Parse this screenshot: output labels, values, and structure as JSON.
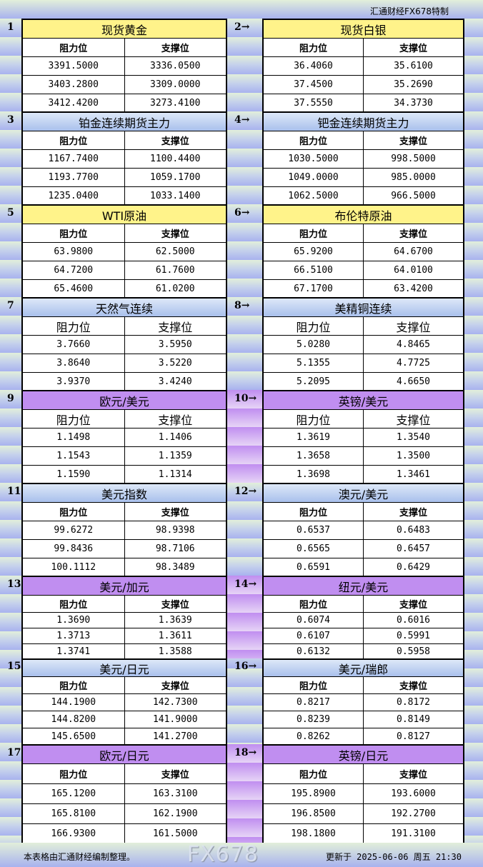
{
  "header": {
    "brand": "汇通财经FX678特制"
  },
  "labels": {
    "resistance": "阻力位",
    "support": "支撑位",
    "arrow": "→"
  },
  "colors": {
    "yellow": "#fff38a",
    "blue": "#c8d8f4",
    "purple": "#c08ef0"
  },
  "sections": [
    {
      "num": "1",
      "title": "现货黄金",
      "color": "yellow",
      "rows": [
        [
          "3391.5000",
          "3336.0500"
        ],
        [
          "3403.2800",
          "3309.0000"
        ],
        [
          "3412.4200",
          "3273.4100"
        ]
      ]
    },
    {
      "num": "2",
      "title": "现货白银",
      "color": "yellow",
      "rows": [
        [
          "36.4060",
          "35.6100"
        ],
        [
          "37.4500",
          "35.2690"
        ],
        [
          "37.5550",
          "34.3730"
        ]
      ]
    },
    {
      "num": "3",
      "title": "铂金连续期货主力",
      "color": "blue",
      "rows": [
        [
          "1167.7400",
          "1100.4400"
        ],
        [
          "1193.7700",
          "1059.1700"
        ],
        [
          "1235.0400",
          "1033.1400"
        ]
      ]
    },
    {
      "num": "4",
      "title": "钯金连续期货主力",
      "color": "blue",
      "rows": [
        [
          "1030.5000",
          "998.5000"
        ],
        [
          "1049.0000",
          "985.0000"
        ],
        [
          "1062.5000",
          "966.5000"
        ]
      ]
    },
    {
      "num": "5",
      "title": "WTI原油",
      "color": "yellow",
      "rows": [
        [
          "63.9800",
          "62.5000"
        ],
        [
          "64.7200",
          "61.7600"
        ],
        [
          "65.4600",
          "61.0200"
        ]
      ]
    },
    {
      "num": "6",
      "title": "布伦特原油",
      "color": "yellow",
      "rows": [
        [
          "65.9200",
          "64.6700"
        ],
        [
          "66.5100",
          "64.0100"
        ],
        [
          "67.1700",
          "63.4200"
        ]
      ]
    },
    {
      "num": "7",
      "title": "天然气连续",
      "color": "blue",
      "rows": [
        [
          "3.7660",
          "3.5950"
        ],
        [
          "3.8640",
          "3.5220"
        ],
        [
          "3.9370",
          "3.4240"
        ]
      ]
    },
    {
      "num": "8",
      "title": "美精铜连续",
      "color": "blue",
      "rows": [
        [
          "5.0280",
          "4.8465"
        ],
        [
          "5.1355",
          "4.7725"
        ],
        [
          "5.2095",
          "4.6650"
        ]
      ]
    },
    {
      "num": "9",
      "title": "欧元/美元",
      "color": "purple",
      "rows": [
        [
          "1.1498",
          "1.1406"
        ],
        [
          "1.1543",
          "1.1359"
        ],
        [
          "1.1590",
          "1.1314"
        ]
      ]
    },
    {
      "num": "10",
      "title": "英镑/美元",
      "color": "purple",
      "rows": [
        [
          "1.3619",
          "1.3540"
        ],
        [
          "1.3658",
          "1.3500"
        ],
        [
          "1.3698",
          "1.3461"
        ]
      ]
    },
    {
      "num": "11",
      "title": "美元指数",
      "color": "blue",
      "rows": [
        [
          "99.6272",
          "98.9398"
        ],
        [
          "99.8436",
          "98.7106"
        ],
        [
          "100.1112",
          "98.3489"
        ]
      ]
    },
    {
      "num": "12",
      "title": "澳元/美元",
      "color": "blue",
      "rows": [
        [
          "0.6537",
          "0.6483"
        ],
        [
          "0.6565",
          "0.6457"
        ],
        [
          "0.6591",
          "0.6429"
        ]
      ]
    },
    {
      "num": "13",
      "title": "美元/加元",
      "color": "purple",
      "rows": [
        [
          "1.3690",
          "1.3639"
        ],
        [
          "1.3713",
          "1.3611"
        ],
        [
          "1.3741",
          "1.3588"
        ]
      ]
    },
    {
      "num": "14",
      "title": "纽元/美元",
      "color": "purple",
      "rows": [
        [
          "0.6074",
          "0.6016"
        ],
        [
          "0.6107",
          "0.5991"
        ],
        [
          "0.6132",
          "0.5958"
        ]
      ]
    },
    {
      "num": "15",
      "title": "美元/日元",
      "color": "blue",
      "rows": [
        [
          "144.1900",
          "142.7300"
        ],
        [
          "144.8200",
          "141.9000"
        ],
        [
          "145.6500",
          "141.2700"
        ]
      ]
    },
    {
      "num": "16",
      "title": "美元/瑞郎",
      "color": "blue",
      "rows": [
        [
          "0.8217",
          "0.8172"
        ],
        [
          "0.8239",
          "0.8149"
        ],
        [
          "0.8262",
          "0.8127"
        ]
      ]
    },
    {
      "num": "17",
      "title": "欧元/日元",
      "color": "purple",
      "rows": [
        [
          "165.1200",
          "163.3100"
        ],
        [
          "165.8100",
          "162.1900"
        ],
        [
          "166.9300",
          "161.5000"
        ]
      ]
    },
    {
      "num": "18",
      "title": "英镑/日元",
      "color": "purple",
      "rows": [
        [
          "195.8900",
          "193.6000"
        ],
        [
          "196.8500",
          "192.2700"
        ],
        [
          "198.1800",
          "191.3100"
        ]
      ]
    }
  ],
  "footer": {
    "note": "本表格由汇通财经编制整理。",
    "updated": "更新于 2025-06-06 周五 21:30"
  },
  "watermark": "FX678"
}
